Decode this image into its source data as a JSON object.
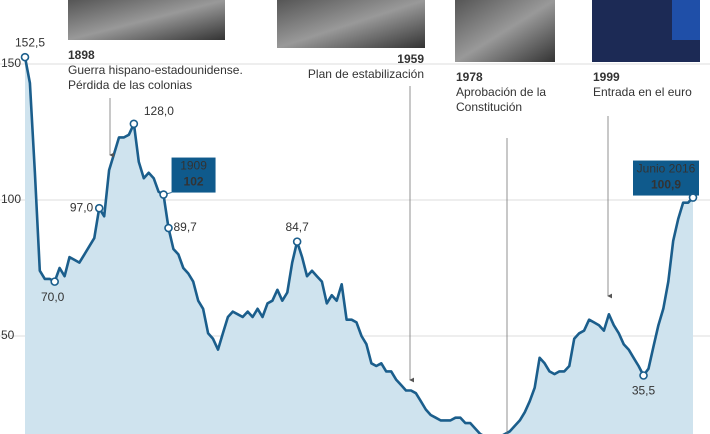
{
  "chart_data": {
    "type": "line",
    "categories": [
      null,
      null,
      null,
      null,
      null,
      null,
      null,
      null,
      null,
      null,
      null,
      null,
      null,
      null,
      null,
      null,
      null,
      null,
      null,
      null,
      null,
      null,
      null,
      null,
      null,
      null,
      null,
      null,
      null,
      null,
      null,
      null,
      null,
      null,
      null,
      null,
      null,
      null,
      null,
      null,
      null,
      null,
      null,
      null,
      null,
      null,
      null,
      null,
      null,
      null,
      null,
      null,
      null,
      null,
      null,
      null,
      null,
      null,
      null,
      null,
      null,
      null,
      null,
      null,
      null,
      null,
      null,
      null,
      null,
      null,
      null,
      null,
      null,
      null,
      null,
      null,
      null,
      null,
      null,
      null,
      null,
      null,
      null,
      null,
      null,
      null,
      null,
      null,
      null,
      null,
      null,
      null,
      null,
      null,
      null,
      null,
      null,
      null,
      null,
      null,
      null,
      null,
      null,
      null,
      null,
      null,
      null,
      null,
      null,
      null,
      null,
      null,
      null,
      null,
      null,
      null,
      null,
      null,
      null,
      null,
      null,
      null,
      null,
      null,
      null,
      null,
      null,
      null,
      null,
      null,
      null,
      null,
      null,
      null,
      null,
      null
    ],
    "values": [
      152.5,
      143,
      110,
      74,
      71,
      71,
      70,
      75,
      72,
      79,
      78,
      77,
      80,
      83,
      86,
      97,
      94,
      111,
      117,
      123,
      123,
      124,
      128,
      114,
      108,
      110,
      108,
      103,
      102,
      89.7,
      82,
      80,
      75,
      73,
      70,
      63,
      60,
      51,
      49,
      45,
      51,
      57,
      59,
      58,
      57,
      59,
      57,
      60,
      57,
      62,
      63,
      67,
      63,
      66,
      77,
      84.7,
      79,
      72,
      74,
      72,
      70,
      62,
      65,
      63,
      69,
      56,
      56,
      55,
      50,
      47,
      40,
      39,
      40,
      37,
      37,
      34,
      32,
      30,
      30,
      29,
      26,
      23,
      21,
      20,
      19,
      19,
      19,
      20,
      20,
      18,
      18,
      16,
      14,
      13,
      12,
      12,
      13,
      14,
      15,
      17,
      19,
      22,
      26,
      31,
      42,
      40,
      37,
      36,
      37,
      37,
      39,
      49,
      51,
      52,
      56,
      55,
      54,
      52,
      58,
      54,
      51,
      47,
      45,
      42,
      39,
      35.5,
      38,
      46,
      54,
      60,
      70,
      85,
      93,
      99,
      99,
      100.9
    ],
    "value_labels": [
      "152,5",
      null,
      null,
      null,
      null,
      null,
      "70,0",
      null,
      null,
      null,
      null,
      null,
      null,
      null,
      null,
      "97,0",
      null,
      null,
      null,
      null,
      null,
      null,
      "128,0",
      null,
      null,
      null,
      null,
      null,
      "102",
      "89,7",
      null,
      null,
      null,
      null,
      null,
      null,
      null,
      null,
      null,
      null,
      null,
      null,
      null,
      null,
      null,
      null,
      null,
      null,
      null,
      null,
      null,
      null,
      null,
      null,
      null,
      "84,7",
      null,
      null,
      null,
      null,
      null,
      null,
      null,
      null,
      null,
      null,
      null,
      null,
      null,
      null,
      null,
      null,
      null,
      null,
      null,
      null,
      null,
      null,
      null,
      null,
      null,
      null,
      null,
      null,
      null,
      null,
      null,
      null,
      null,
      null,
      null,
      null,
      null,
      null,
      null,
      null,
      null,
      null,
      null,
      null,
      null,
      null,
      null,
      null,
      null,
      null,
      null,
      null,
      null,
      null,
      null,
      null,
      null,
      null,
      null,
      null,
      null,
      null,
      null,
      null,
      null,
      null,
      null,
      null,
      null,
      "35,5",
      null,
      null,
      null,
      null,
      null,
      null,
      null,
      null,
      null,
      "100,9"
    ],
    "value_label_titles": [
      null,
      null,
      null,
      null,
      null,
      null,
      null,
      null,
      null,
      null,
      null,
      null,
      null,
      null,
      null,
      null,
      null,
      null,
      null,
      null,
      null,
      null,
      null,
      null,
      null,
      null,
      null,
      null,
      "1909",
      null,
      null,
      null,
      null,
      null,
      null,
      null,
      null,
      null,
      null,
      null,
      null,
      null,
      null,
      null,
      null,
      null,
      null,
      null,
      null,
      null,
      null,
      null,
      null,
      null,
      null,
      null,
      null,
      null,
      null,
      null,
      null,
      null,
      null,
      null,
      null,
      null,
      null,
      null,
      null,
      null,
      null,
      null,
      null,
      null,
      null,
      null,
      null,
      null,
      null,
      null,
      null,
      null,
      null,
      null,
      null,
      null,
      null,
      null,
      null,
      null,
      null,
      null,
      null,
      null,
      null,
      null,
      null,
      null,
      null,
      null,
      null,
      null,
      null,
      null,
      null,
      null,
      null,
      null,
      null,
      null,
      null,
      null,
      null,
      null,
      null,
      null,
      null,
      null,
      null,
      null,
      null,
      null,
      null,
      null,
      null,
      null,
      null,
      null,
      null,
      null,
      null,
      null,
      null,
      null,
      null,
      "Junio 2016"
    ],
    "color": "#1b5e8c",
    "ylim": [
      14,
      173.5
    ],
    "yticks": [
      50,
      100,
      150
    ],
    "grid": true,
    "events": [
      {
        "year": "1898",
        "text": [
          "Guerra hispano-estadounidense.",
          "Pérdida de las colonias"
        ]
      },
      {
        "year": "1959",
        "text": [
          "Plan de estabilización"
        ]
      },
      {
        "year": "1978",
        "text": [
          "Aprobación de la",
          "Constitución"
        ]
      },
      {
        "year": "1999",
        "text": [
          "Entrada en el euro"
        ]
      }
    ]
  }
}
